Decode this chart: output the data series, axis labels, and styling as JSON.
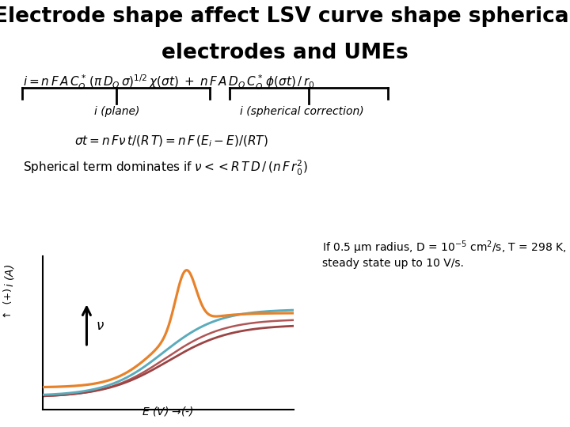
{
  "title_line1": "Electrode shape affect LSV curve shape spherical",
  "title_line2": "electrodes and UMEs",
  "label_plane": "i (plane)",
  "label_spherical": "i (spherical correction)",
  "equation2": "$\\sigma t = n\\,F\\nu\\,t/(R\\,T) = n\\,F\\,(E_i - E)/(RT)$",
  "spherical_note": "Spherical term dominates if $\\nu << R\\,T\\,D\\,/\\,(n\\,F\\,r_0^2)$",
  "annotation_line1": "If 0.5 μm radius, D = 10",
  "annotation_line2": " cm²/s, T = 298 K,",
  "annotation_line3": "steady state up to 10 V/s.",
  "xlabel": "$E$ (V) →(-)",
  "ylabel_top": "$i$ (A) → (+)",
  "background_color": "#ffffff",
  "curve_colors_orange": "#E8822A",
  "curve_colors_cyan": "#5AABBB",
  "curve_colors_red1": "#9B4444",
  "curve_colors_red2": "#B05555",
  "title_fontsize": 19,
  "eq_fontsize": 11,
  "label_fontsize": 10,
  "note_fontsize": 11
}
